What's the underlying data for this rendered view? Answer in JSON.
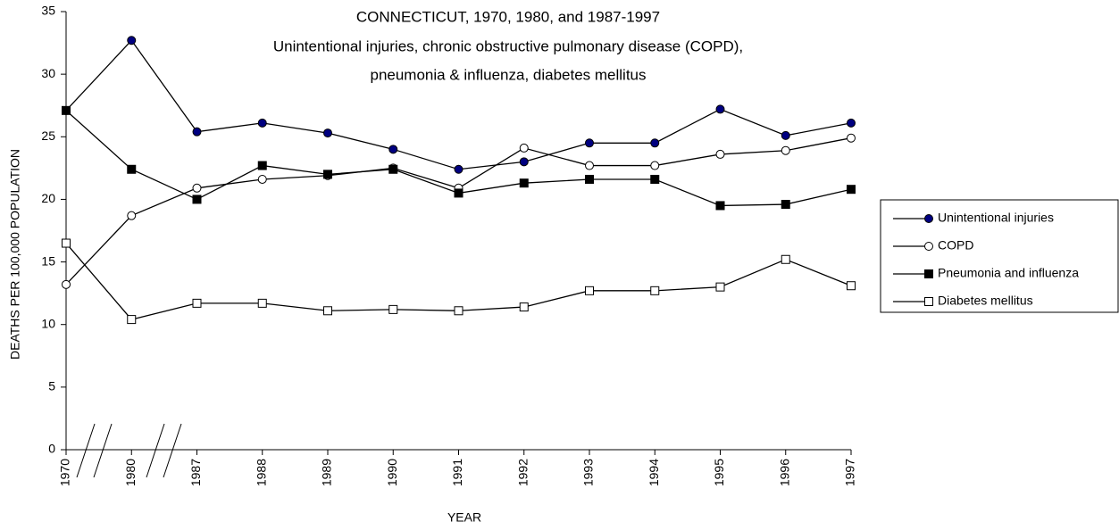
{
  "chart_data": {
    "type": "line",
    "title": [
      "CONNECTICUT, 1970, 1980, and 1987-1997",
      "Unintentional injuries, chronic obstructive pulmonary disease (COPD),",
      "pneumonia & influenza, diabetes mellitus"
    ],
    "x_label": "YEAR",
    "y_label": "DEATHS PER 100,000 POPULATION",
    "categories": [
      "1970",
      "1980",
      "1987",
      "1988",
      "1989",
      "1990",
      "1991",
      "1992",
      "1993",
      "1994",
      "1995",
      "1996",
      "1997"
    ],
    "ylim": [
      0,
      35
    ],
    "yticks": [
      0,
      5,
      10,
      15,
      20,
      25,
      30,
      35
    ],
    "legend": "right",
    "series": [
      {
        "name": "Unintentional injuries",
        "marker": "circle",
        "color": "#000080",
        "values": [
          27.1,
          32.7,
          25.4,
          26.1,
          25.3,
          24.0,
          22.4,
          23.0,
          24.5,
          24.5,
          27.2,
          25.1,
          26.1
        ]
      },
      {
        "name": "COPD",
        "marker": "circle",
        "color": "#ffffff",
        "values": [
          13.2,
          18.7,
          20.9,
          21.6,
          21.9,
          22.5,
          20.9,
          24.1,
          22.7,
          22.7,
          23.6,
          23.9,
          24.9
        ]
      },
      {
        "name": "Pneumonia and influenza",
        "marker": "square",
        "color": "#000000",
        "values": [
          27.1,
          22.4,
          20.0,
          22.7,
          22.0,
          22.4,
          20.5,
          21.3,
          21.6,
          21.6,
          19.5,
          19.6,
          20.8
        ]
      },
      {
        "name": "Diabetes mellitus",
        "marker": "square",
        "color": "#ffffff",
        "values": [
          16.5,
          10.4,
          11.7,
          11.7,
          11.1,
          11.2,
          11.1,
          11.4,
          12.7,
          12.7,
          13.0,
          15.2,
          13.1
        ]
      }
    ]
  }
}
